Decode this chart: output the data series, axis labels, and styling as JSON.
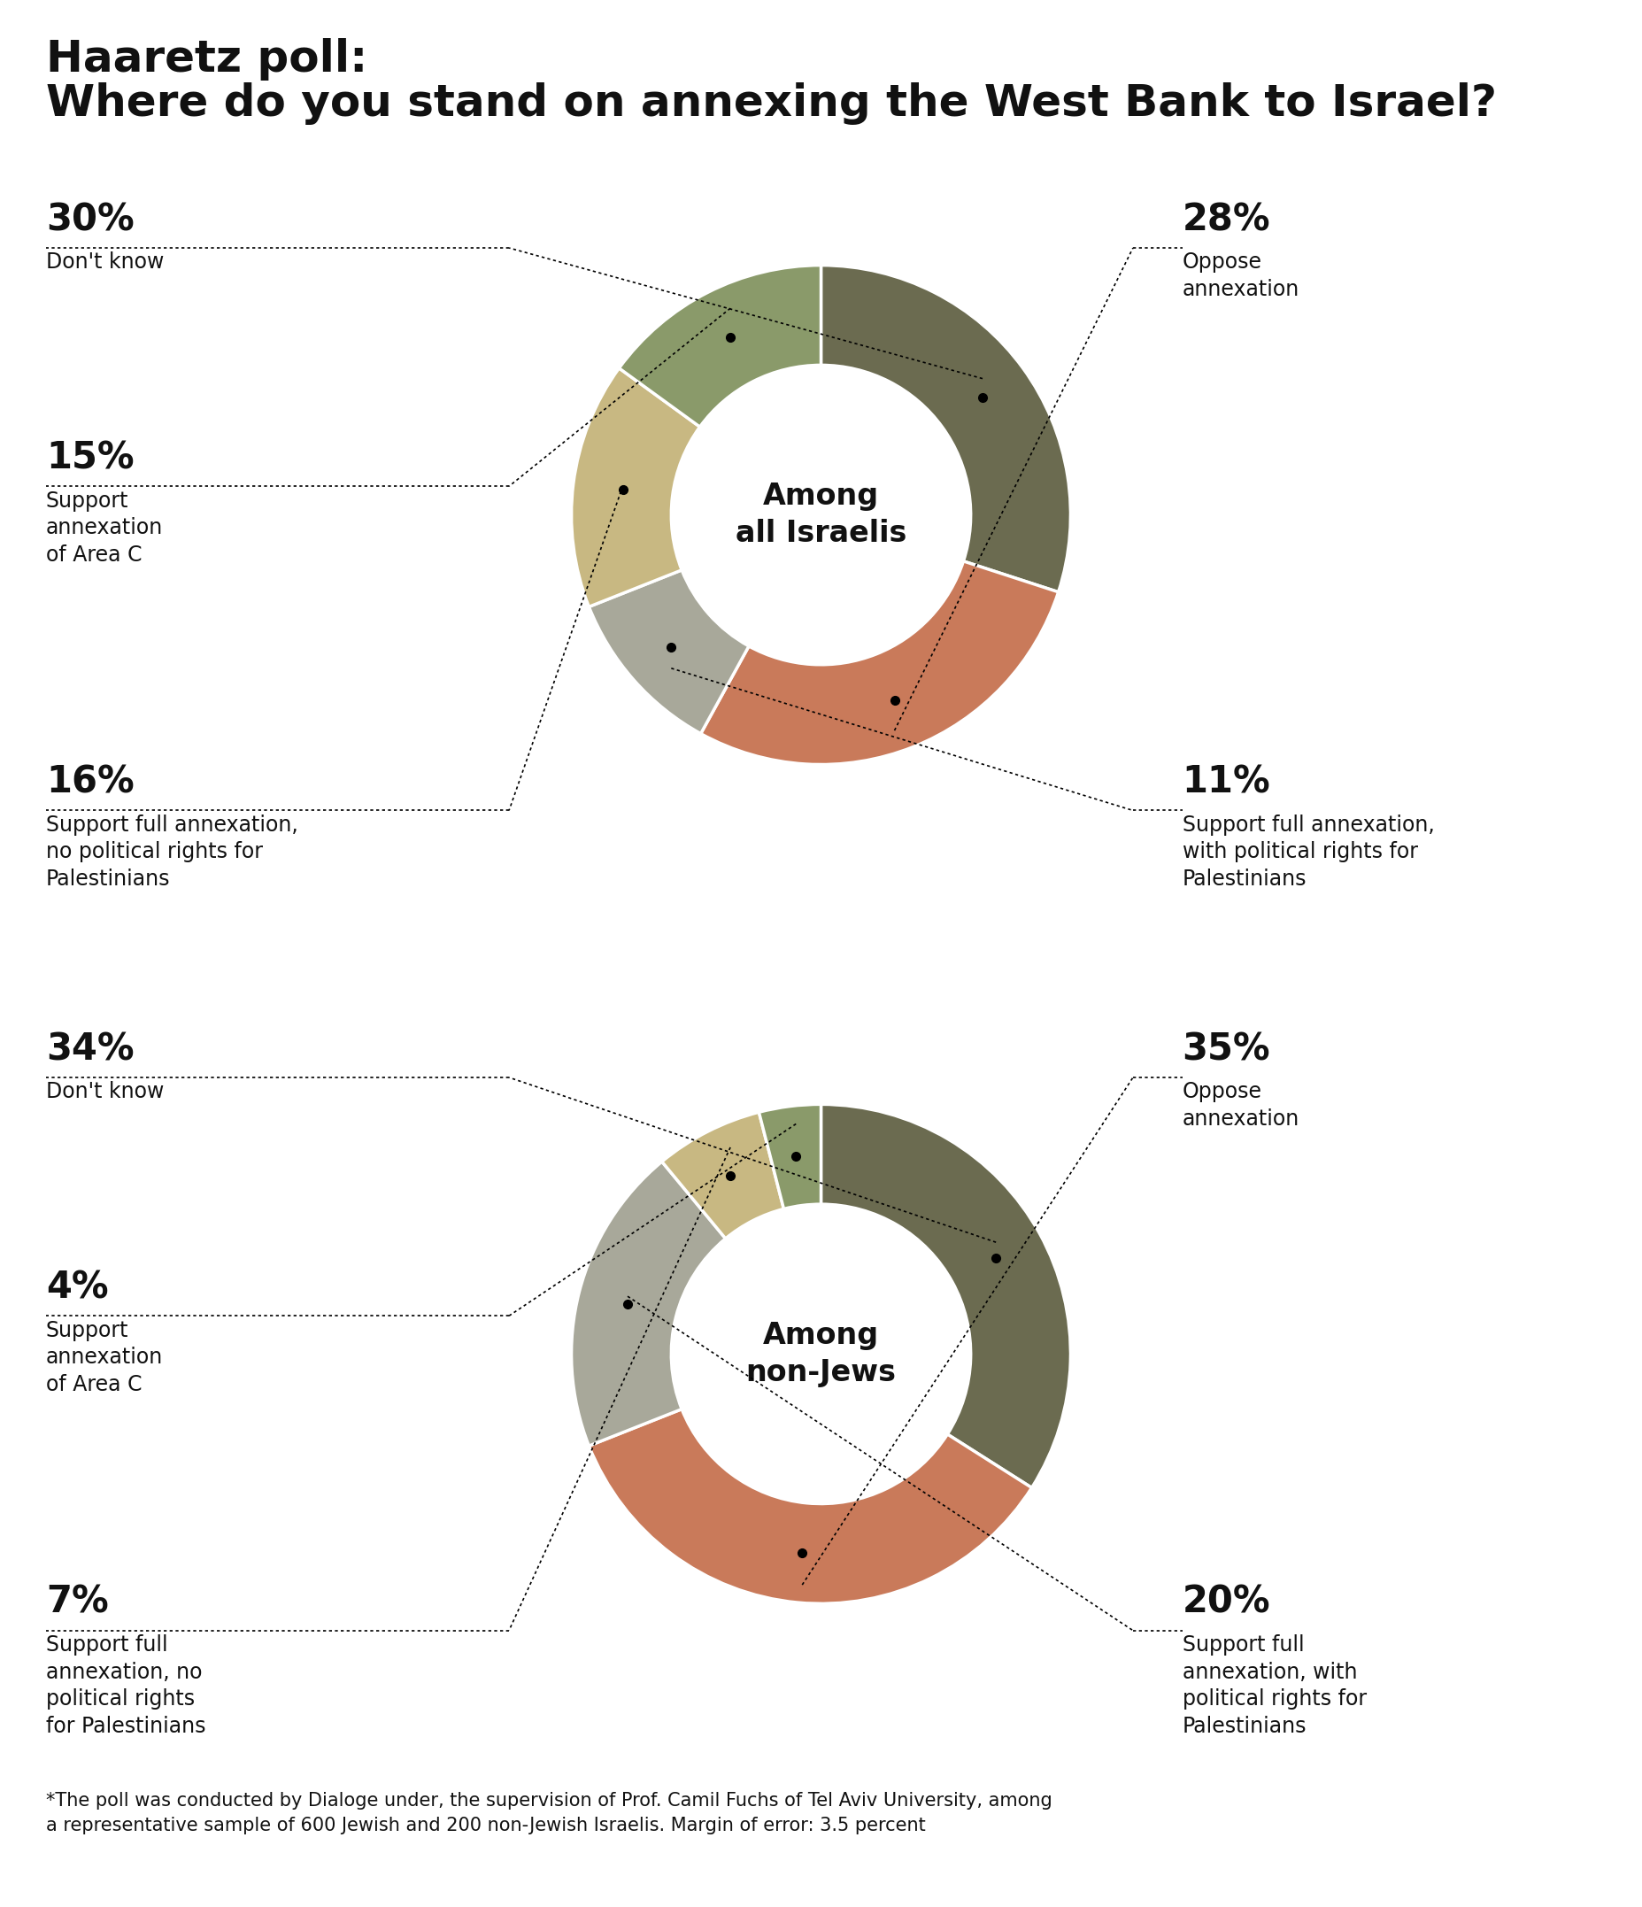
{
  "title_line1": "Haaretz poll:",
  "title_line2": "Where do you stand on annexing the West Bank to Israel?",
  "chart1": {
    "center_label": "Among\nall Israelis",
    "segments": [
      {
        "pct": 30,
        "color": "#6b6b50",
        "side": "left",
        "label_pct": "30%",
        "label_desc": "Don't know",
        "label_row": "top"
      },
      {
        "pct": 28,
        "color": "#c97a5a",
        "side": "right",
        "label_pct": "28%",
        "label_desc": "Oppose\nannexation",
        "label_row": "top"
      },
      {
        "pct": 11,
        "color": "#a8a89a",
        "side": "right",
        "label_pct": "11%",
        "label_desc": "Support full annexation,\nwith political rights for\nPalestinians",
        "label_row": "bottom"
      },
      {
        "pct": 16,
        "color": "#c8b882",
        "side": "left",
        "label_pct": "16%",
        "label_desc": "Support full annexation,\nno political rights for\nPalestinians",
        "label_row": "bottom"
      },
      {
        "pct": 15,
        "color": "#8a9a6a",
        "side": "left",
        "label_pct": "15%",
        "label_desc": "Support\nannexation\nof Area C",
        "label_row": "middle"
      }
    ]
  },
  "chart2": {
    "center_label": "Among\nnon-Jews",
    "segments": [
      {
        "pct": 34,
        "color": "#6b6b50",
        "side": "left",
        "label_pct": "34%",
        "label_desc": "Don't know",
        "label_row": "top"
      },
      {
        "pct": 35,
        "color": "#c97a5a",
        "side": "right",
        "label_pct": "35%",
        "label_desc": "Oppose\nannexation",
        "label_row": "top"
      },
      {
        "pct": 20,
        "color": "#a8a89a",
        "side": "right",
        "label_pct": "20%",
        "label_desc": "Support full\nannexation, with\npolitical rights for\nPalestinians",
        "label_row": "bottom"
      },
      {
        "pct": 7,
        "color": "#c8b882",
        "side": "left",
        "label_pct": "7%",
        "label_desc": "Support full\nannexation, no\npolitical rights\nfor Palestinians",
        "label_row": "bottom"
      },
      {
        "pct": 4,
        "color": "#8a9a6a",
        "side": "left",
        "label_pct": "4%",
        "label_desc": "Support\nannexation\nof Area C",
        "label_row": "middle"
      }
    ]
  },
  "footnote": "*The poll was conducted by Dialoge under, the supervision of Prof. Camil Fuchs of Tel Aviv University, among\na representative sample of 600 Jewish and 200 non-Jewish Israelis. Margin of error: 3.5 percent",
  "bg_color": "#ffffff",
  "text_color": "#111111"
}
